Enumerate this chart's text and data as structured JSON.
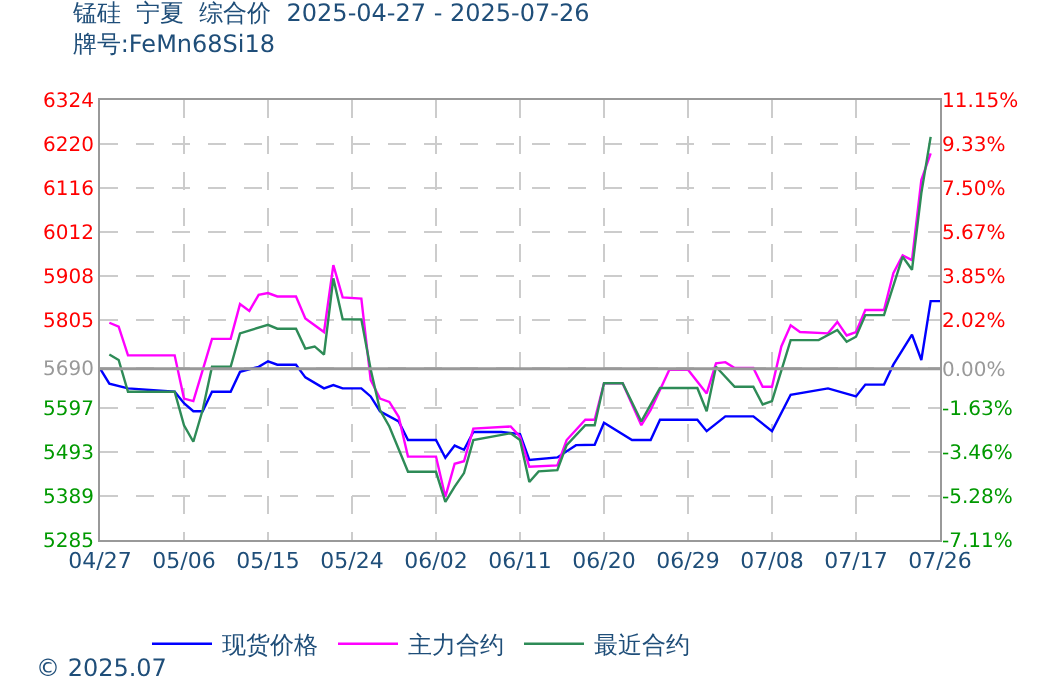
{
  "chart_data": {
    "type": "line",
    "title": "锰硅  宁夏  综合价  2025-04-27 - 2025-07-26",
    "subtitle": "牌号:FeMn68Si18",
    "xlim": [
      "2025-04-27",
      "2025-07-26"
    ],
    "xticks": [
      {
        "value": "2025-04-27",
        "label": "04/27"
      },
      {
        "value": "2025-05-06",
        "label": "05/06"
      },
      {
        "value": "2025-05-15",
        "label": "05/15"
      },
      {
        "value": "2025-05-24",
        "label": "05/24"
      },
      {
        "value": "2025-06-02",
        "label": "06/02"
      },
      {
        "value": "2025-06-11",
        "label": "06/11"
      },
      {
        "value": "2025-06-20",
        "label": "06/20"
      },
      {
        "value": "2025-06-29",
        "label": "06/29"
      },
      {
        "value": "2025-07-08",
        "label": "07/08"
      },
      {
        "value": "2025-07-17",
        "label": "07/17"
      },
      {
        "value": "2025-07-26",
        "label": "07/26"
      }
    ],
    "ylim": [
      5285,
      6324
    ],
    "yticks": [
      5285,
      5389,
      5493,
      5597,
      5690,
      5805,
      5908,
      6012,
      6116,
      6220,
      6324
    ],
    "y2lim": [
      -7.11,
      11.15
    ],
    "y2ticks": [
      {
        "value": -7.11,
        "label": "-7.11%"
      },
      {
        "value": -5.28,
        "label": "-5.28%"
      },
      {
        "value": -3.46,
        "label": "-3.46%"
      },
      {
        "value": -1.63,
        "label": "-1.63%"
      },
      {
        "value": 0,
        "label": "0.00%"
      },
      {
        "value": 2.02,
        "label": "2.02%"
      },
      {
        "value": 3.85,
        "label": "3.85%"
      },
      {
        "value": 5.67,
        "label": "5.67%"
      },
      {
        "value": 7.5,
        "label": "7.50%"
      },
      {
        "value": 9.33,
        "label": "9.33%"
      },
      {
        "value": 11.15,
        "label": "11.15%"
      }
    ],
    "ref_lines": [
      {
        "axis": "y2",
        "value": 0,
        "color": "#999999"
      }
    ],
    "grid": true,
    "legend": "bottom",
    "line_style": "solid",
    "marker": "none",
    "annotations": [
      "© 2025.07"
    ],
    "series": [
      {
        "name": "现货价格",
        "color": "#0000ff",
        "x": [
          "2025-04-27",
          "2025-04-28",
          "2025-04-30",
          "2025-05-05",
          "2025-05-06",
          "2025-05-07",
          "2025-05-08",
          "2025-05-09",
          "2025-05-11",
          "2025-05-12",
          "2025-05-14",
          "2025-05-15",
          "2025-05-16",
          "2025-05-18",
          "2025-05-19",
          "2025-05-21",
          "2025-05-22",
          "2025-05-23",
          "2025-05-25",
          "2025-05-26",
          "2025-05-27",
          "2025-05-29",
          "2025-05-30",
          "2025-06-02",
          "2025-06-03",
          "2025-06-04",
          "2025-06-05",
          "2025-06-06",
          "2025-06-09",
          "2025-06-11",
          "2025-06-12",
          "2025-06-15",
          "2025-06-17",
          "2025-06-19",
          "2025-06-20",
          "2025-06-23",
          "2025-06-25",
          "2025-06-26",
          "2025-06-30",
          "2025-07-01",
          "2025-07-03",
          "2025-07-06",
          "2025-07-08",
          "2025-07-10",
          "2025-07-14",
          "2025-07-17",
          "2025-07-18",
          "2025-07-20",
          "2025-07-21",
          "2025-07-23",
          "2025-07-24",
          "2025-07-25",
          "2025-07-26"
        ],
        "values": [
          5690,
          5654,
          5643,
          5635,
          5608,
          5589,
          5589,
          5635,
          5635,
          5682,
          5694,
          5707,
          5699,
          5699,
          5669,
          5643,
          5651,
          5643,
          5643,
          5624,
          5589,
          5565,
          5521,
          5521,
          5479,
          5508,
          5498,
          5540,
          5540,
          5535,
          5474,
          5480,
          5509,
          5510,
          5562,
          5521,
          5521,
          5569,
          5569,
          5542,
          5577,
          5577,
          5542,
          5628,
          5643,
          5624,
          5652,
          5652,
          5699,
          5770,
          5710,
          5849,
          5849
        ]
      },
      {
        "name": "主力合约",
        "color": "#ff00ff",
        "x": [
          "2025-04-28",
          "2025-04-29",
          "2025-04-30",
          "2025-05-05",
          "2025-05-06",
          "2025-05-07",
          "2025-05-08",
          "2025-05-09",
          "2025-05-11",
          "2025-05-12",
          "2025-05-13",
          "2025-05-14",
          "2025-05-15",
          "2025-05-16",
          "2025-05-18",
          "2025-05-19",
          "2025-05-21",
          "2025-05-22",
          "2025-05-23",
          "2025-05-25",
          "2025-05-26",
          "2025-05-27",
          "2025-05-28",
          "2025-05-29",
          "2025-05-30",
          "2025-06-02",
          "2025-06-03",
          "2025-06-04",
          "2025-06-05",
          "2025-06-06",
          "2025-06-10",
          "2025-06-11",
          "2025-06-12",
          "2025-06-15",
          "2025-06-16",
          "2025-06-18",
          "2025-06-19",
          "2025-06-20",
          "2025-06-22",
          "2025-06-24",
          "2025-06-25",
          "2025-06-27",
          "2025-06-29",
          "2025-07-01",
          "2025-07-02",
          "2025-07-03",
          "2025-07-04",
          "2025-07-06",
          "2025-07-07",
          "2025-07-08",
          "2025-07-09",
          "2025-07-10",
          "2025-07-11",
          "2025-07-14",
          "2025-07-15",
          "2025-07-16",
          "2025-07-17",
          "2025-07-18",
          "2025-07-20",
          "2025-07-21",
          "2025-07-22",
          "2025-07-23",
          "2025-07-24",
          "2025-07-25"
        ],
        "values": [
          5798,
          5789,
          5721,
          5721,
          5619,
          5613,
          5686,
          5760,
          5760,
          5842,
          5826,
          5864,
          5868,
          5860,
          5860,
          5808,
          5776,
          5934,
          5858,
          5855,
          5663,
          5619,
          5611,
          5576,
          5482,
          5482,
          5387,
          5465,
          5471,
          5548,
          5553,
          5529,
          5458,
          5461,
          5521,
          5569,
          5569,
          5655,
          5655,
          5556,
          5592,
          5687,
          5687,
          5631,
          5702,
          5705,
          5691,
          5691,
          5647,
          5647,
          5742,
          5792,
          5776,
          5773,
          5800,
          5768,
          5776,
          5828,
          5828,
          5915,
          5957,
          5946,
          6135,
          6198
        ]
      },
      {
        "name": "最近合约",
        "color": "#2e8b57",
        "x": [
          "2025-04-28",
          "2025-04-29",
          "2025-04-30",
          "2025-05-05",
          "2025-05-06",
          "2025-05-07",
          "2025-05-08",
          "2025-05-09",
          "2025-05-11",
          "2025-05-12",
          "2025-05-15",
          "2025-05-16",
          "2025-05-18",
          "2025-05-19",
          "2025-05-20",
          "2025-05-21",
          "2025-05-22",
          "2025-05-23",
          "2025-05-25",
          "2025-05-26",
          "2025-05-27",
          "2025-05-28",
          "2025-05-30",
          "2025-06-02",
          "2025-06-03",
          "2025-06-04",
          "2025-06-05",
          "2025-06-06",
          "2025-06-10",
          "2025-06-11",
          "2025-06-12",
          "2025-06-13",
          "2025-06-15",
          "2025-06-16",
          "2025-06-18",
          "2025-06-19",
          "2025-06-20",
          "2025-06-22",
          "2025-06-24",
          "2025-06-26",
          "2025-06-30",
          "2025-07-01",
          "2025-07-02",
          "2025-07-04",
          "2025-07-06",
          "2025-07-07",
          "2025-07-08",
          "2025-07-10",
          "2025-07-13",
          "2025-07-15",
          "2025-07-16",
          "2025-07-17",
          "2025-07-18",
          "2025-07-20",
          "2025-07-22",
          "2025-07-23",
          "2025-07-24",
          "2025-07-25"
        ],
        "values": [
          5723,
          5710,
          5635,
          5635,
          5556,
          5517,
          5592,
          5694,
          5694,
          5773,
          5793,
          5784,
          5784,
          5737,
          5742,
          5723,
          5903,
          5806,
          5806,
          5688,
          5592,
          5553,
          5446,
          5446,
          5375,
          5411,
          5443,
          5521,
          5537,
          5521,
          5422,
          5447,
          5450,
          5509,
          5556,
          5556,
          5655,
          5655,
          5565,
          5644,
          5644,
          5589,
          5694,
          5647,
          5647,
          5605,
          5613,
          5757,
          5757,
          5781,
          5753,
          5765,
          5816,
          5816,
          5954,
          5923,
          6104,
          6237
        ]
      }
    ]
  }
}
